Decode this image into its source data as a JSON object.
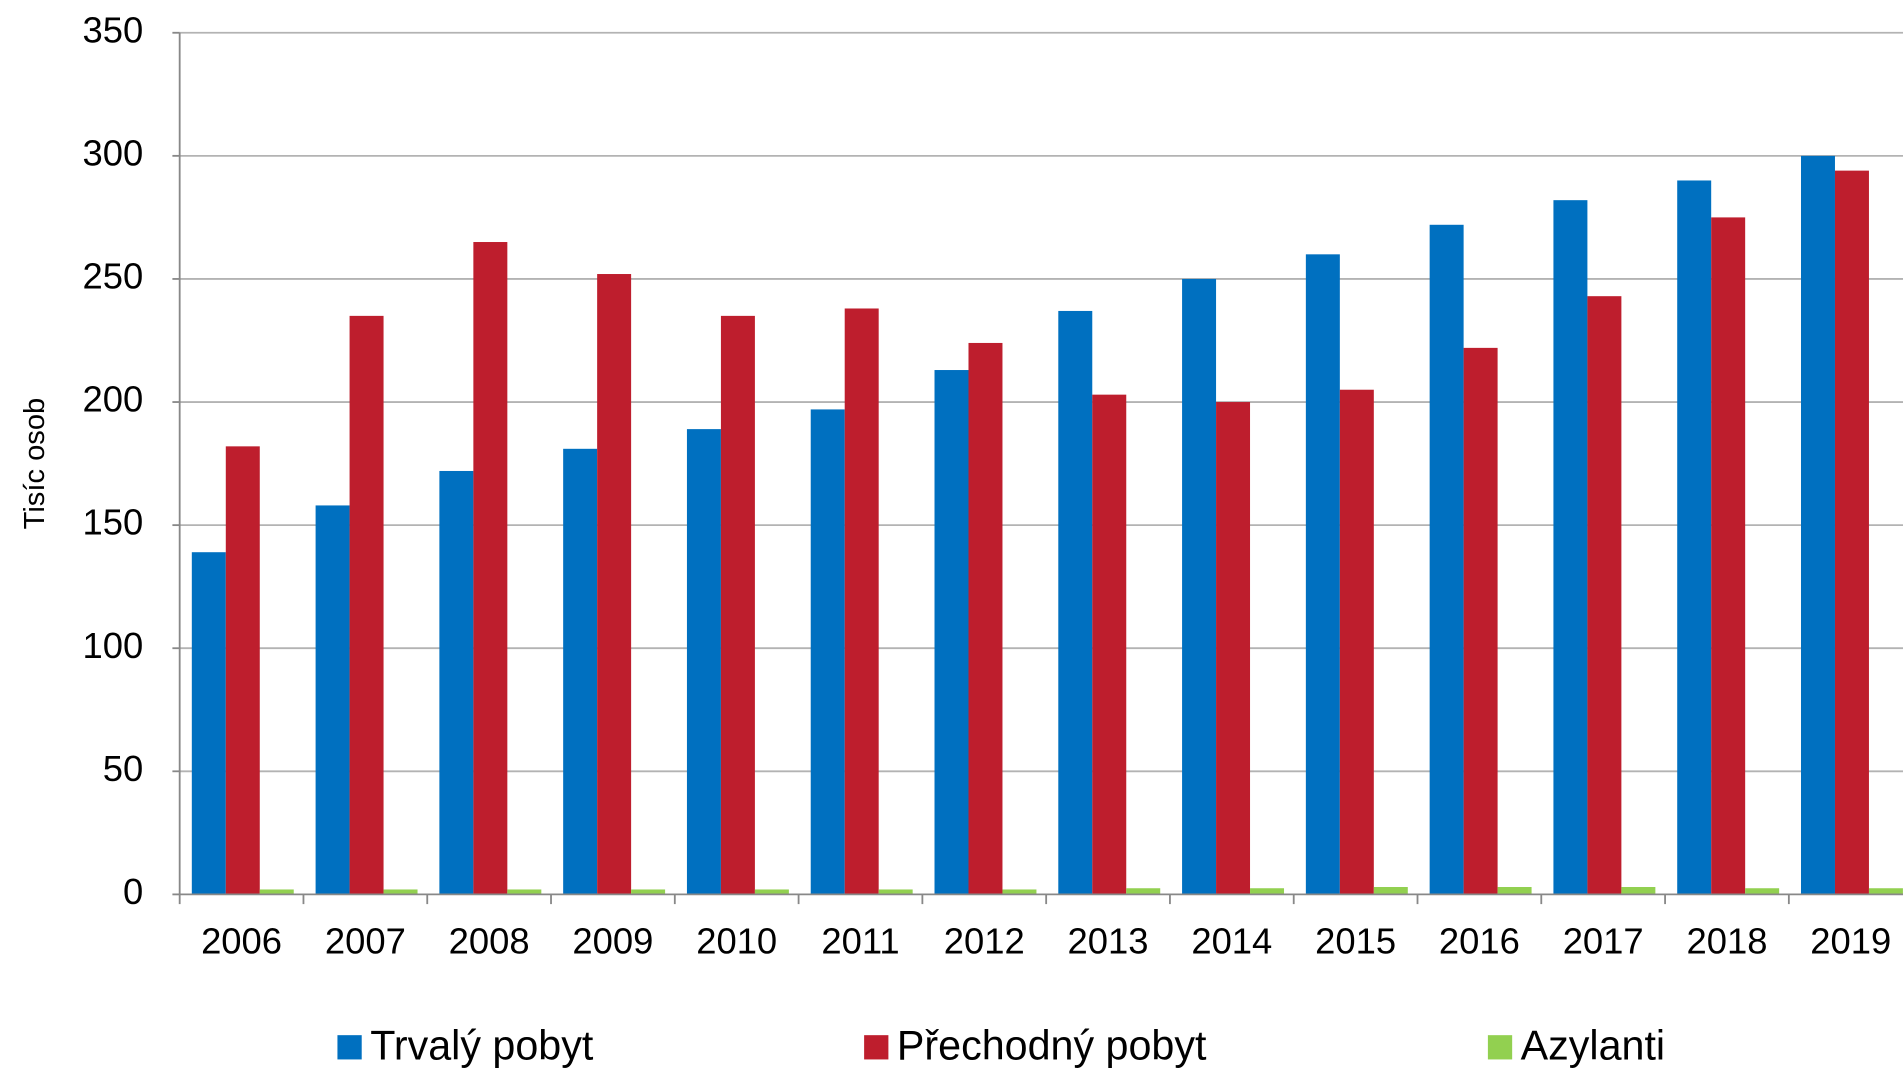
{
  "chart_data": {
    "type": "bar",
    "y_label": "Tisíc osob",
    "categories": [
      "2006",
      "2007",
      "2008",
      "2009",
      "2010",
      "2011",
      "2012",
      "2013",
      "2014",
      "2015",
      "2016",
      "2017",
      "2018",
      "2019"
    ],
    "series": [
      {
        "name": "Trvalý pobyt",
        "color": "#0070c0",
        "values": [
          139,
          158,
          172,
          181,
          189,
          197,
          213,
          237,
          250,
          260,
          272,
          282,
          290,
          300
        ]
      },
      {
        "name": "Přechodný pobyt",
        "color": "#be1e2d",
        "values": [
          182,
          235,
          265,
          252,
          235,
          238,
          224,
          203,
          200,
          205,
          222,
          243,
          275,
          294
        ]
      },
      {
        "name": "Azylanti",
        "color": "#92d050",
        "values": [
          2,
          2,
          2,
          2,
          2,
          2,
          2,
          2.5,
          2.5,
          3,
          3,
          3,
          2.5,
          2.5
        ]
      }
    ],
    "ylim": [
      0,
      350
    ],
    "yticks": [
      0,
      50,
      100,
      150,
      200,
      250,
      300,
      350
    ],
    "grid": true,
    "legend": "bottom"
  }
}
